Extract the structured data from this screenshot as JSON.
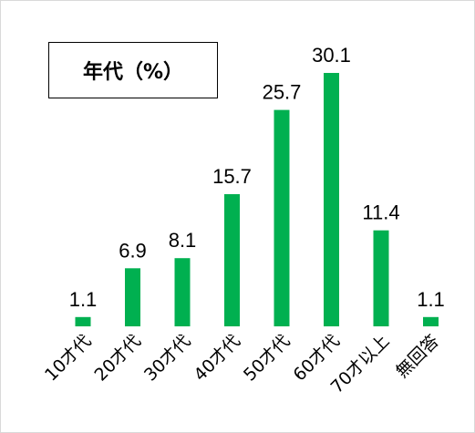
{
  "chart_data": {
    "type": "bar",
    "title": "年代（%）",
    "categories": [
      "10才代",
      "20才代",
      "30才代",
      "40才代",
      "50才代",
      "60才代",
      "70才以上",
      "無回答"
    ],
    "values": [
      1.1,
      6.9,
      8.1,
      15.7,
      25.7,
      30.1,
      11.4,
      1.1
    ],
    "data_labels": [
      "1.1",
      "6.9",
      "8.1",
      "15.7",
      "25.7",
      "30.1",
      "11.4",
      "1.1"
    ],
    "xlabel": "",
    "ylabel": "",
    "ylim": [
      0,
      30.1
    ],
    "grid": false,
    "legend": "none",
    "bar_color": "#00b050"
  }
}
